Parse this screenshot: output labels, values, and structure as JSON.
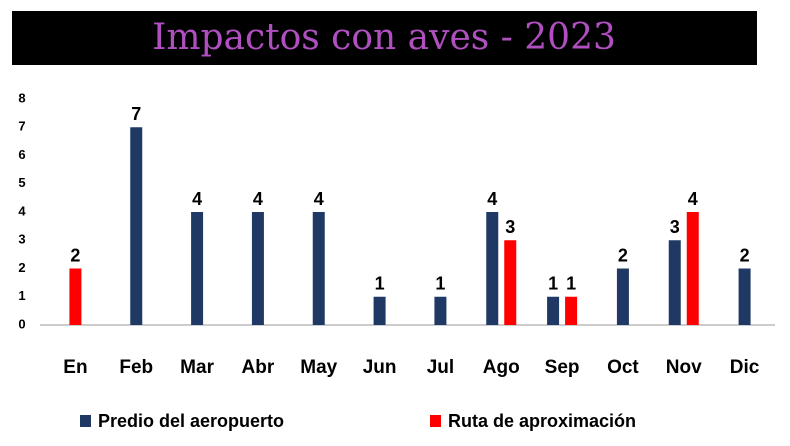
{
  "chart_data": {
    "type": "bar",
    "title": "Impactos con aves - 2023",
    "categories": [
      "En",
      "Feb",
      "Mar",
      "Abr",
      "May",
      "Jun",
      "Jul",
      "Ago",
      "Sep",
      "Oct",
      "Nov",
      "Dic"
    ],
    "series": [
      {
        "name": "Predio del aeropuerto",
        "color": "#1f3864",
        "values": [
          null,
          7,
          4,
          4,
          4,
          1,
          1,
          4,
          1,
          2,
          3,
          2
        ]
      },
      {
        "name": "Ruta de aproximación",
        "color": "#ff0000",
        "values": [
          2,
          null,
          null,
          null,
          null,
          null,
          null,
          3,
          1,
          null,
          4,
          null
        ]
      }
    ],
    "ylim": [
      0,
      8
    ],
    "yticks": [
      0,
      1,
      2,
      3,
      4,
      5,
      6,
      7,
      8
    ],
    "grid": false,
    "legend": "bottom"
  }
}
